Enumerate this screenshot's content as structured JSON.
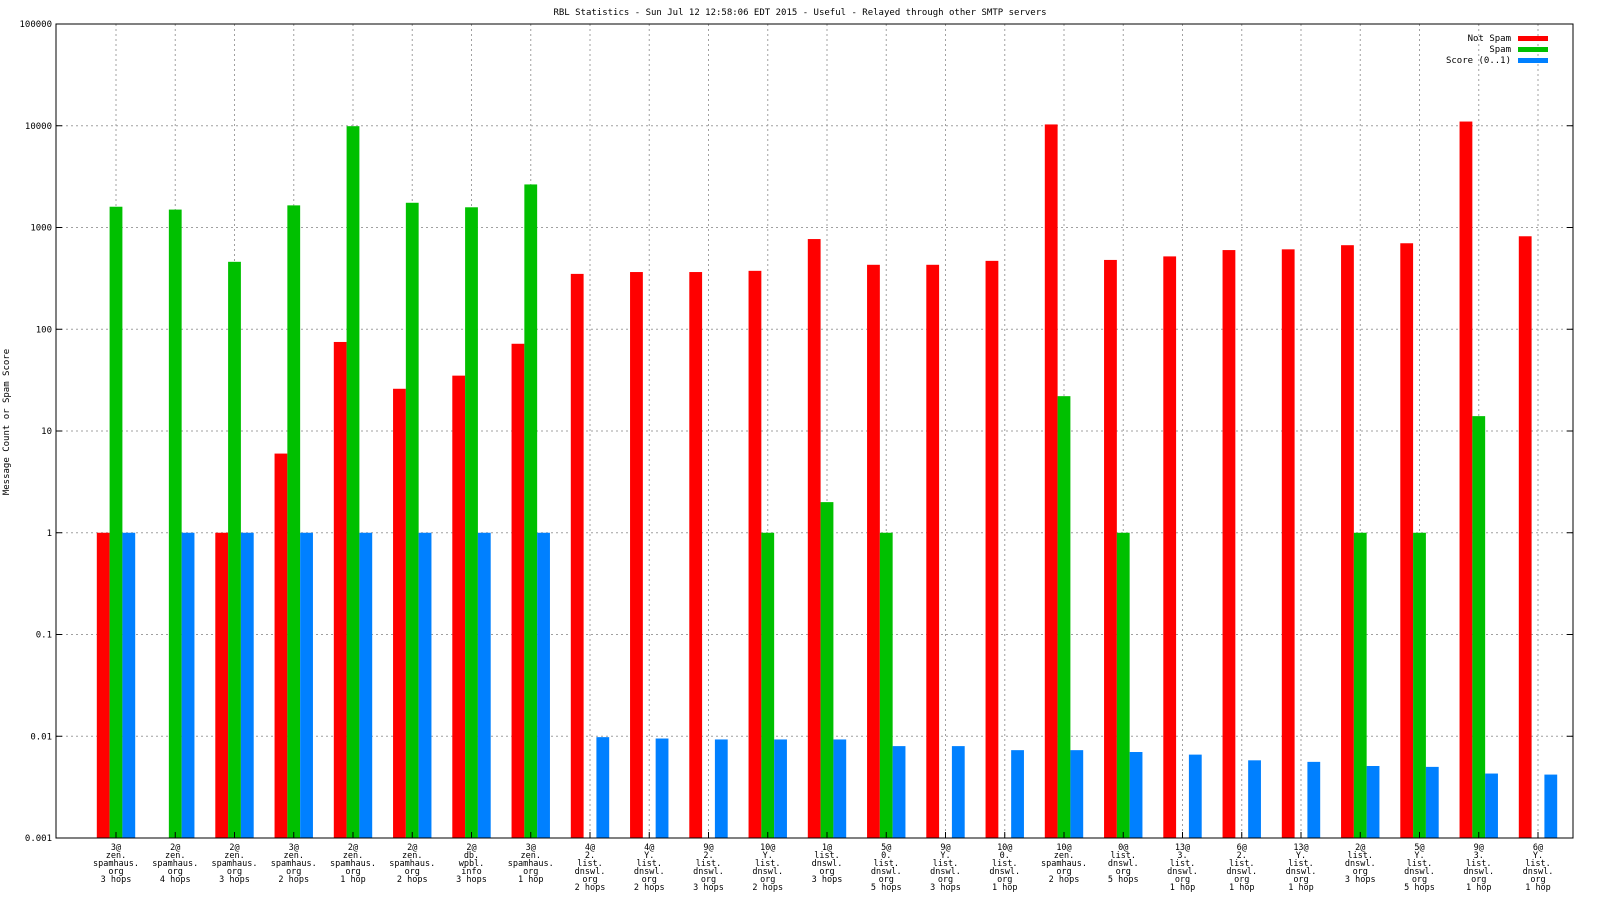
{
  "chart_data": {
    "type": "bar",
    "title": "RBL Statistics - Sun Jul 12 12:58:06 EDT 2015 - Useful - Relayed through other SMTP servers",
    "xlabel": "",
    "ylabel": "Message Count or Spam Score",
    "yscale": "log",
    "ylim": [
      0.001,
      100000
    ],
    "yticks": [
      "0.001",
      "0.01",
      "0.1",
      "1",
      "10",
      "100",
      "1000",
      "10000",
      "100000"
    ],
    "grid": true,
    "legend_position": "top-right",
    "categories": [
      [
        "3@",
        "zen.",
        "spamhaus.",
        "org",
        "3 hops"
      ],
      [
        "2@",
        "zen.",
        "spamhaus.",
        "org",
        "4 hops"
      ],
      [
        "2@",
        "zen.",
        "spamhaus.",
        "org",
        "3 hops"
      ],
      [
        "3@",
        "zen.",
        "spamhaus.",
        "org",
        "2 hops"
      ],
      [
        "2@",
        "zen.",
        "spamhaus.",
        "org",
        "1 hop"
      ],
      [
        "2@",
        "zen.",
        "spamhaus.",
        "org",
        "2 hops"
      ],
      [
        "2@",
        "db.",
        "wpbl.",
        "info",
        "3 hops"
      ],
      [
        "3@",
        "zen.",
        "spamhaus.",
        "org",
        "1 hop"
      ],
      [
        "4@",
        "2.",
        "list.",
        "dnswl.",
        "org",
        "2 hops"
      ],
      [
        "4@",
        "Y.",
        "list.",
        "dnswl.",
        "org",
        "2 hops"
      ],
      [
        "9@",
        "2.",
        "list.",
        "dnswl.",
        "org",
        "3 hops"
      ],
      [
        "10@",
        "Y.",
        "list.",
        "dnswl.",
        "org",
        "2 hops"
      ],
      [
        "1@",
        "list.",
        "dnswl.",
        "org",
        "3 hops"
      ],
      [
        "5@",
        "0.",
        "list.",
        "dnswl.",
        "org",
        "5 hops"
      ],
      [
        "9@",
        "Y.",
        "list.",
        "dnswl.",
        "org",
        "3 hops"
      ],
      [
        "10@",
        "0.",
        "list.",
        "dnswl.",
        "org",
        "1 hop"
      ],
      [
        "10@",
        "zen.",
        "spamhaus.",
        "org",
        "2 hops"
      ],
      [
        "0@",
        "list.",
        "dnswl.",
        "org",
        "5 hops"
      ],
      [
        "13@",
        "3.",
        "list.",
        "dnswl.",
        "org",
        "1 hop"
      ],
      [
        "6@",
        "2.",
        "list.",
        "dnswl.",
        "org",
        "1 hop"
      ],
      [
        "13@",
        "Y.",
        "list.",
        "dnswl.",
        "org",
        "1 hop"
      ],
      [
        "2@",
        "list.",
        "dnswl.",
        "org",
        "3 hops"
      ],
      [
        "5@",
        "Y.",
        "list.",
        "dnswl.",
        "org",
        "5 hops"
      ],
      [
        "9@",
        "3.",
        "list.",
        "dnswl.",
        "org",
        "1 hop"
      ],
      [
        "6@",
        "Y.",
        "list.",
        "dnswl.",
        "org",
        "1 hop"
      ]
    ],
    "series": [
      {
        "name": "Not Spam",
        "color": "#ff0000",
        "values": [
          1,
          null,
          1,
          6,
          75,
          26,
          35,
          72,
          350,
          365,
          365,
          375,
          770,
          430,
          430,
          470,
          10300,
          480,
          520,
          600,
          610,
          670,
          700,
          11000,
          820
        ]
      },
      {
        "name": "Spam",
        "color": "#00c000",
        "values": [
          1600,
          1500,
          460,
          1650,
          9900,
          1750,
          1580,
          2650,
          null,
          null,
          null,
          1,
          2,
          1,
          null,
          null,
          22,
          1,
          null,
          null,
          null,
          1,
          1,
          14,
          null
        ]
      },
      {
        "name": "Score (0..1)",
        "color": "#0080ff",
        "values": [
          1,
          1,
          1,
          1,
          1,
          1,
          1,
          1,
          0.0098,
          0.0095,
          0.0093,
          0.0093,
          0.0093,
          0.008,
          0.008,
          0.0073,
          0.0073,
          0.007,
          0.0066,
          0.0058,
          0.0056,
          0.0051,
          0.005,
          0.0043,
          0.0042
        ]
      }
    ]
  }
}
